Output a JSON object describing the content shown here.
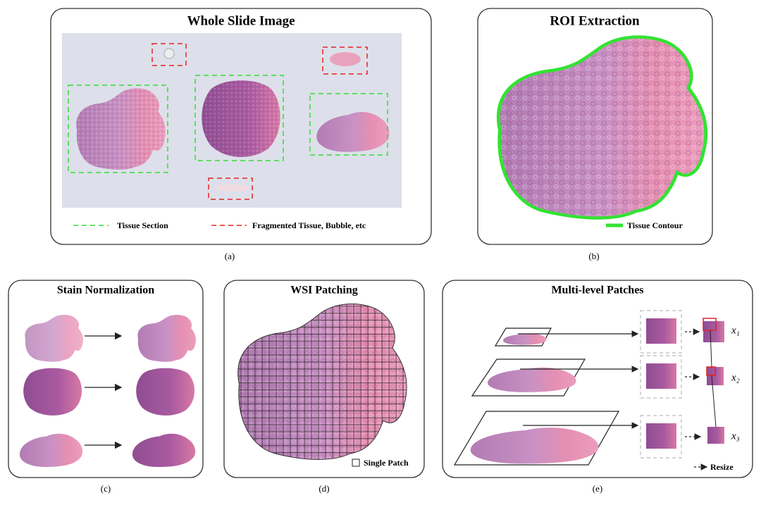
{
  "panel_a": {
    "title": "Whole Slide Image",
    "legend_tissue": "Tissue Section",
    "legend_fragment": "Fragmented Tissue, Bubble, etc",
    "caption": "(a)"
  },
  "panel_b": {
    "title": "ROI Extraction",
    "legend": "Tissue Contour",
    "caption": "(b)"
  },
  "panel_c": {
    "title": "Stain Normalization",
    "caption": "(c)"
  },
  "panel_d": {
    "title": "WSI Patching",
    "legend": "Single Patch",
    "caption": "(d)"
  },
  "panel_e": {
    "title": "Multi-level Patches",
    "labels": [
      "x₁",
      "x₂",
      "x₃"
    ],
    "legend": "Resize",
    "caption": "(e)"
  }
}
